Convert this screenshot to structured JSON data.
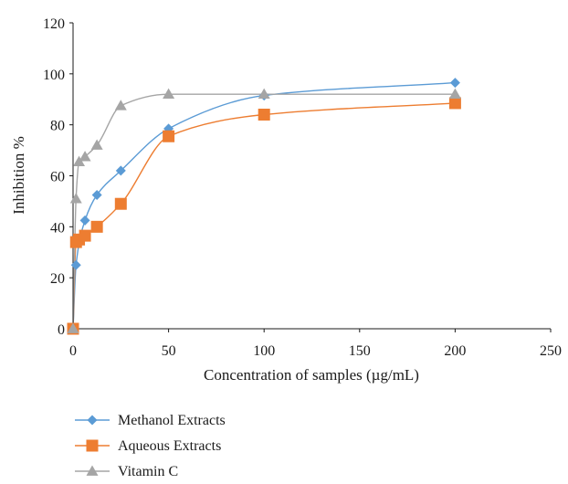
{
  "chart_data": {
    "type": "scatter",
    "xlabel": "Concentration of samples (µg/mL)",
    "ylabel": "Inhibition %",
    "xlim": [
      0,
      250
    ],
    "ylim": [
      0,
      120
    ],
    "xticks": [
      0,
      50,
      100,
      150,
      200,
      250
    ],
    "yticks": [
      0,
      20,
      40,
      60,
      80,
      100,
      120
    ],
    "grid": false,
    "legend_position": "bottom",
    "series": [
      {
        "name": "Methanol Extracts",
        "marker": "diamond",
        "color": "#5b9bd5",
        "x": [
          0,
          1.56,
          6.25,
          12.5,
          25,
          50,
          100,
          200
        ],
        "y": [
          0,
          25,
          42.5,
          52.5,
          62,
          78.5,
          91.5,
          96.5
        ]
      },
      {
        "name": "Aqueous Extracts",
        "marker": "square",
        "color": "#ed7d31",
        "x": [
          0,
          1.56,
          3.125,
          6.25,
          12.5,
          25,
          50,
          100,
          200
        ],
        "y": [
          0,
          34,
          35,
          36.5,
          40,
          49,
          75.5,
          84,
          88.5
        ]
      },
      {
        "name": "Vitamin C",
        "marker": "triangle",
        "color": "#a5a5a5",
        "x": [
          0,
          1.56,
          3.125,
          6.25,
          12.5,
          25,
          50,
          100,
          200
        ],
        "y": [
          0,
          51,
          65.5,
          67.5,
          72,
          87.5,
          92,
          92,
          92
        ]
      }
    ]
  }
}
